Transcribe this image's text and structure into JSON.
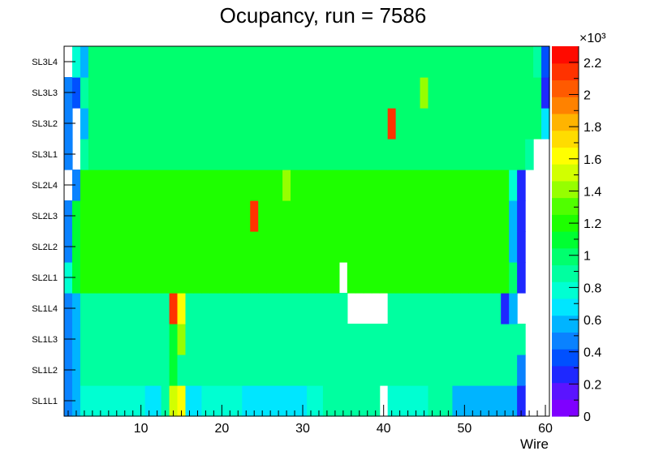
{
  "chart_data": {
    "type": "heatmap",
    "title": "Ocupancy, run = 7586",
    "xlabel": "Wire",
    "ylabel": "",
    "x_range": [
      0.5,
      60.5
    ],
    "x_ticks": [
      10,
      20,
      30,
      40,
      50,
      60
    ],
    "rows": [
      "SL1L1",
      "SL1L2",
      "SL1L3",
      "SL1L4",
      "SL2L1",
      "SL2L2",
      "SL2L3",
      "SL2L4",
      "SL3L1",
      "SL3L2",
      "SL3L3",
      "SL3L4"
    ],
    "z_range": [
      0,
      2300
    ],
    "z_multiplier_label": "×10³",
    "z_ticks": [
      0,
      0.2,
      0.4,
      0.6,
      0.8,
      1,
      1.2,
      1.4,
      1.6,
      1.8,
      2,
      2.2
    ],
    "palette": [
      "#7f00ff",
      "#5a14ff",
      "#1e28ff",
      "#0050ff",
      "#0a82ff",
      "#00b4ff",
      "#00e6ff",
      "#00ffd2",
      "#00ffa0",
      "#00ff6e",
      "#00ff32",
      "#1eff00",
      "#50ff00",
      "#96ff00",
      "#d2ff00",
      "#ffff00",
      "#ffdc00",
      "#ffb400",
      "#ff8200",
      "#ff5a00",
      "#ff3200",
      "#ff0a00"
    ],
    "values": [
      [
        520,
        530,
        760,
        760,
        760,
        760,
        760,
        760,
        760,
        760,
        720,
        720,
        900,
        1500,
        1600,
        700,
        700,
        760,
        760,
        760,
        760,
        760,
        660,
        660,
        660,
        660,
        660,
        660,
        660,
        660,
        760,
        760,
        860,
        860,
        860,
        860,
        860,
        860,
        860,
        null,
        760,
        760,
        760,
        760,
        760,
        900,
        900,
        900,
        600,
        600,
        600,
        600,
        600,
        600,
        600,
        600,
        300,
        null,
        null,
        null
      ],
      [
        520,
        530,
        860,
        860,
        860,
        880,
        880,
        880,
        880,
        880,
        880,
        880,
        880,
        1100,
        900,
        900,
        900,
        900,
        900,
        900,
        900,
        900,
        900,
        900,
        900,
        900,
        900,
        900,
        900,
        900,
        900,
        900,
        900,
        900,
        900,
        900,
        900,
        900,
        900,
        900,
        900,
        900,
        900,
        900,
        900,
        900,
        900,
        900,
        900,
        900,
        900,
        900,
        900,
        900,
        900,
        900,
        520,
        null,
        null,
        null
      ],
      [
        520,
        530,
        860,
        860,
        860,
        880,
        880,
        880,
        880,
        880,
        880,
        880,
        880,
        1100,
        1400,
        900,
        900,
        900,
        900,
        900,
        900,
        900,
        900,
        900,
        900,
        900,
        900,
        900,
        900,
        900,
        900,
        900,
        900,
        900,
        900,
        900,
        900,
        900,
        900,
        900,
        900,
        900,
        900,
        900,
        900,
        900,
        900,
        900,
        900,
        900,
        900,
        900,
        900,
        900,
        900,
        900,
        900,
        null,
        null,
        null
      ],
      [
        520,
        530,
        860,
        860,
        860,
        860,
        860,
        860,
        860,
        860,
        860,
        860,
        860,
        2100,
        1600,
        900,
        900,
        860,
        860,
        860,
        860,
        860,
        860,
        860,
        860,
        860,
        860,
        860,
        860,
        860,
        860,
        860,
        860,
        860,
        860,
        null,
        null,
        null,
        null,
        null,
        900,
        900,
        900,
        900,
        900,
        900,
        900,
        900,
        900,
        900,
        900,
        900,
        900,
        900,
        300,
        600,
        null,
        null,
        null,
        null
      ],
      [
        760,
        1100,
        1150,
        1150,
        1150,
        1150,
        1150,
        1150,
        1150,
        1150,
        1150,
        1150,
        1150,
        1150,
        1150,
        1150,
        1150,
        1150,
        1150,
        1150,
        1150,
        1150,
        1150,
        1150,
        1150,
        1150,
        1150,
        1150,
        1150,
        1150,
        1150,
        1150,
        1150,
        1150,
        null,
        1150,
        1150,
        1150,
        1150,
        1150,
        1150,
        1150,
        1150,
        1150,
        1150,
        1150,
        1150,
        1150,
        1150,
        1150,
        1150,
        1150,
        1150,
        1150,
        1150,
        1000,
        300,
        null,
        null,
        null
      ],
      [
        520,
        1100,
        1150,
        1150,
        1150,
        1150,
        1150,
        1150,
        1150,
        1150,
        1150,
        1150,
        1150,
        1150,
        1150,
        1150,
        1150,
        1150,
        1150,
        1150,
        1150,
        1150,
        1150,
        1150,
        1150,
        1150,
        1150,
        1150,
        1150,
        1150,
        1150,
        1150,
        1150,
        1150,
        1150,
        1150,
        1150,
        1150,
        1150,
        1150,
        1150,
        1150,
        1150,
        1150,
        1150,
        1150,
        1150,
        1150,
        1150,
        1150,
        1150,
        1150,
        1150,
        1150,
        1150,
        600,
        300,
        null,
        null,
        null
      ],
      [
        520,
        1100,
        1150,
        1150,
        1150,
        1150,
        1150,
        1150,
        1150,
        1150,
        1150,
        1150,
        1150,
        1150,
        1150,
        1150,
        1150,
        1150,
        1150,
        1150,
        1150,
        1150,
        1150,
        2150,
        1150,
        1150,
        1150,
        1150,
        1150,
        1150,
        1150,
        1150,
        1150,
        1150,
        1150,
        1150,
        1150,
        1150,
        1150,
        1150,
        1150,
        1150,
        1150,
        1150,
        1150,
        1150,
        1150,
        1150,
        1150,
        1150,
        1150,
        1150,
        1150,
        1150,
        1150,
        600,
        300,
        null,
        null,
        null
      ],
      [
        null,
        520,
        1150,
        1150,
        1150,
        1150,
        1150,
        1150,
        1150,
        1150,
        1150,
        1150,
        1150,
        1150,
        1150,
        1150,
        1150,
        1150,
        1150,
        1150,
        1150,
        1150,
        1150,
        1150,
        1150,
        1150,
        1150,
        1400,
        1150,
        1150,
        1150,
        1150,
        1150,
        1150,
        1150,
        1150,
        1150,
        1150,
        1150,
        1150,
        1150,
        1150,
        1150,
        1150,
        1150,
        1150,
        1150,
        1150,
        1150,
        1150,
        1150,
        1150,
        1150,
        1150,
        1150,
        800,
        300,
        null,
        null,
        null
      ],
      [
        520,
        null,
        900,
        1000,
        1000,
        1000,
        1000,
        1000,
        1000,
        1000,
        1000,
        1000,
        1000,
        1000,
        1000,
        1000,
        1000,
        1000,
        1000,
        1000,
        1000,
        1000,
        1000,
        1000,
        1000,
        1000,
        1000,
        1000,
        1000,
        1000,
        1000,
        1000,
        1000,
        1000,
        1000,
        1000,
        1000,
        1000,
        1000,
        1000,
        1000,
        1000,
        1000,
        1000,
        1000,
        1000,
        1000,
        1000,
        1000,
        1000,
        1000,
        1000,
        1000,
        1000,
        1000,
        1000,
        1000,
        900,
        null,
        null
      ],
      [
        520,
        null,
        600,
        1000,
        1000,
        1000,
        1000,
        1000,
        1000,
        1000,
        1000,
        1000,
        1000,
        1000,
        1000,
        1000,
        1000,
        1000,
        1000,
        1000,
        1000,
        1000,
        1000,
        1000,
        1000,
        1000,
        1000,
        1000,
        1000,
        1000,
        1000,
        1000,
        1000,
        1000,
        1000,
        1000,
        1000,
        1000,
        1000,
        1000,
        2100,
        1000,
        1000,
        1000,
        1000,
        1000,
        1000,
        1000,
        1000,
        1000,
        1000,
        1000,
        1000,
        1000,
        1000,
        1000,
        1000,
        1000,
        1000,
        700
      ],
      [
        520,
        400,
        900,
        1000,
        1000,
        1000,
        1000,
        1000,
        1000,
        1000,
        1000,
        1000,
        1000,
        1000,
        1000,
        1000,
        1000,
        1000,
        1000,
        1000,
        1000,
        1000,
        1000,
        1000,
        1000,
        1000,
        1000,
        1000,
        1000,
        1000,
        1000,
        1000,
        1000,
        1000,
        1000,
        1000,
        1000,
        1000,
        1000,
        1000,
        1000,
        1000,
        1000,
        1000,
        1400,
        1000,
        1000,
        1000,
        1000,
        1000,
        1000,
        1000,
        1000,
        1000,
        1000,
        1000,
        1000,
        1000,
        1000,
        300
      ],
      [
        null,
        800,
        600,
        1000,
        1000,
        1000,
        1000,
        1000,
        1000,
        1000,
        1000,
        1000,
        1000,
        1000,
        1000,
        1000,
        1000,
        1000,
        1000,
        1000,
        1000,
        1000,
        1000,
        1000,
        1000,
        1000,
        1000,
        1000,
        1000,
        1000,
        1000,
        1000,
        1000,
        1000,
        1000,
        1000,
        1000,
        1000,
        1000,
        1000,
        1000,
        1000,
        1000,
        1000,
        1000,
        1000,
        1000,
        1000,
        1000,
        1000,
        1000,
        1000,
        1000,
        1000,
        1000,
        1000,
        1000,
        1000,
        900,
        400
      ]
    ]
  }
}
